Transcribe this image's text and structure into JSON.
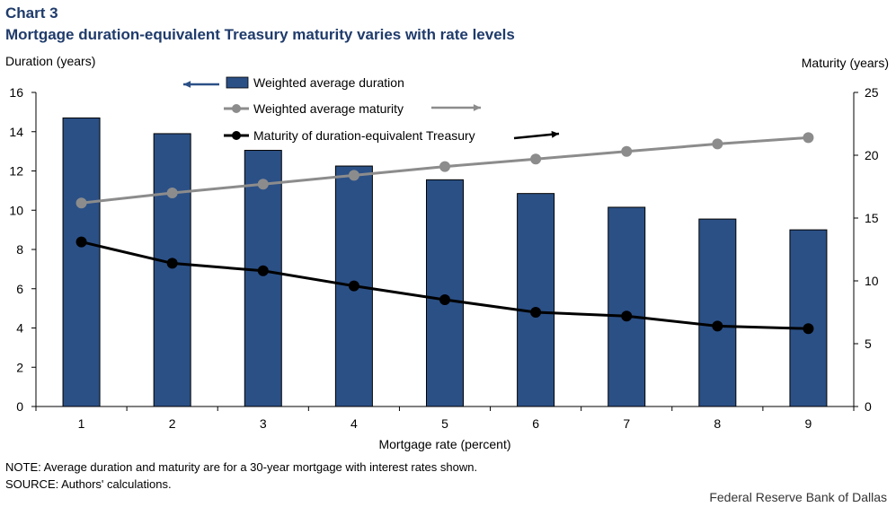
{
  "header": {
    "chart_number": "Chart 3",
    "title": "Mortgage duration-equivalent Treasury maturity varies with rate levels"
  },
  "footer": {
    "note": "NOTE: Average duration and maturity are for a 30-year mortgage with interest rates shown.",
    "source": "SOURCE: Authors' calculations.",
    "credit": "Federal Reserve Bank of Dallas"
  },
  "colors": {
    "bar": "#2b5086",
    "maturity_line": "#8c8c8c",
    "treasury_line": "#000000",
    "title": "#1f3b6b"
  },
  "chart_data": {
    "type": "bar",
    "title": "Mortgage duration-equivalent Treasury maturity varies with rate levels",
    "xlabel": "Mortgage rate (percent)",
    "ylabel_left": "Duration (years)",
    "ylabel_right": "Maturity (years)",
    "categories": [
      "1",
      "2",
      "3",
      "4",
      "5",
      "6",
      "7",
      "8",
      "9"
    ],
    "y_left": {
      "range": [
        0,
        16
      ],
      "ticks": [
        0,
        2,
        4,
        6,
        8,
        10,
        12,
        14,
        16
      ]
    },
    "y_right": {
      "range": [
        0,
        25
      ],
      "ticks": [
        0,
        5,
        10,
        15,
        20,
        25
      ]
    },
    "grid": false,
    "legend_position": "top-left",
    "series": [
      {
        "name": "Weighted average duration",
        "type": "bar",
        "axis": "left",
        "values": [
          14.7,
          13.9,
          13.05,
          12.25,
          11.55,
          10.85,
          10.15,
          9.55,
          9.0
        ]
      },
      {
        "name": "Weighted average maturity",
        "type": "line",
        "axis": "right",
        "values": [
          16.2,
          17.0,
          17.7,
          18.4,
          19.1,
          19.7,
          20.3,
          20.9,
          21.4
        ]
      },
      {
        "name": "Maturity of duration-equivalent Treasury",
        "type": "line",
        "axis": "right",
        "values": [
          13.1,
          11.4,
          10.8,
          9.6,
          8.5,
          7.5,
          7.2,
          6.4,
          6.2
        ]
      }
    ]
  }
}
